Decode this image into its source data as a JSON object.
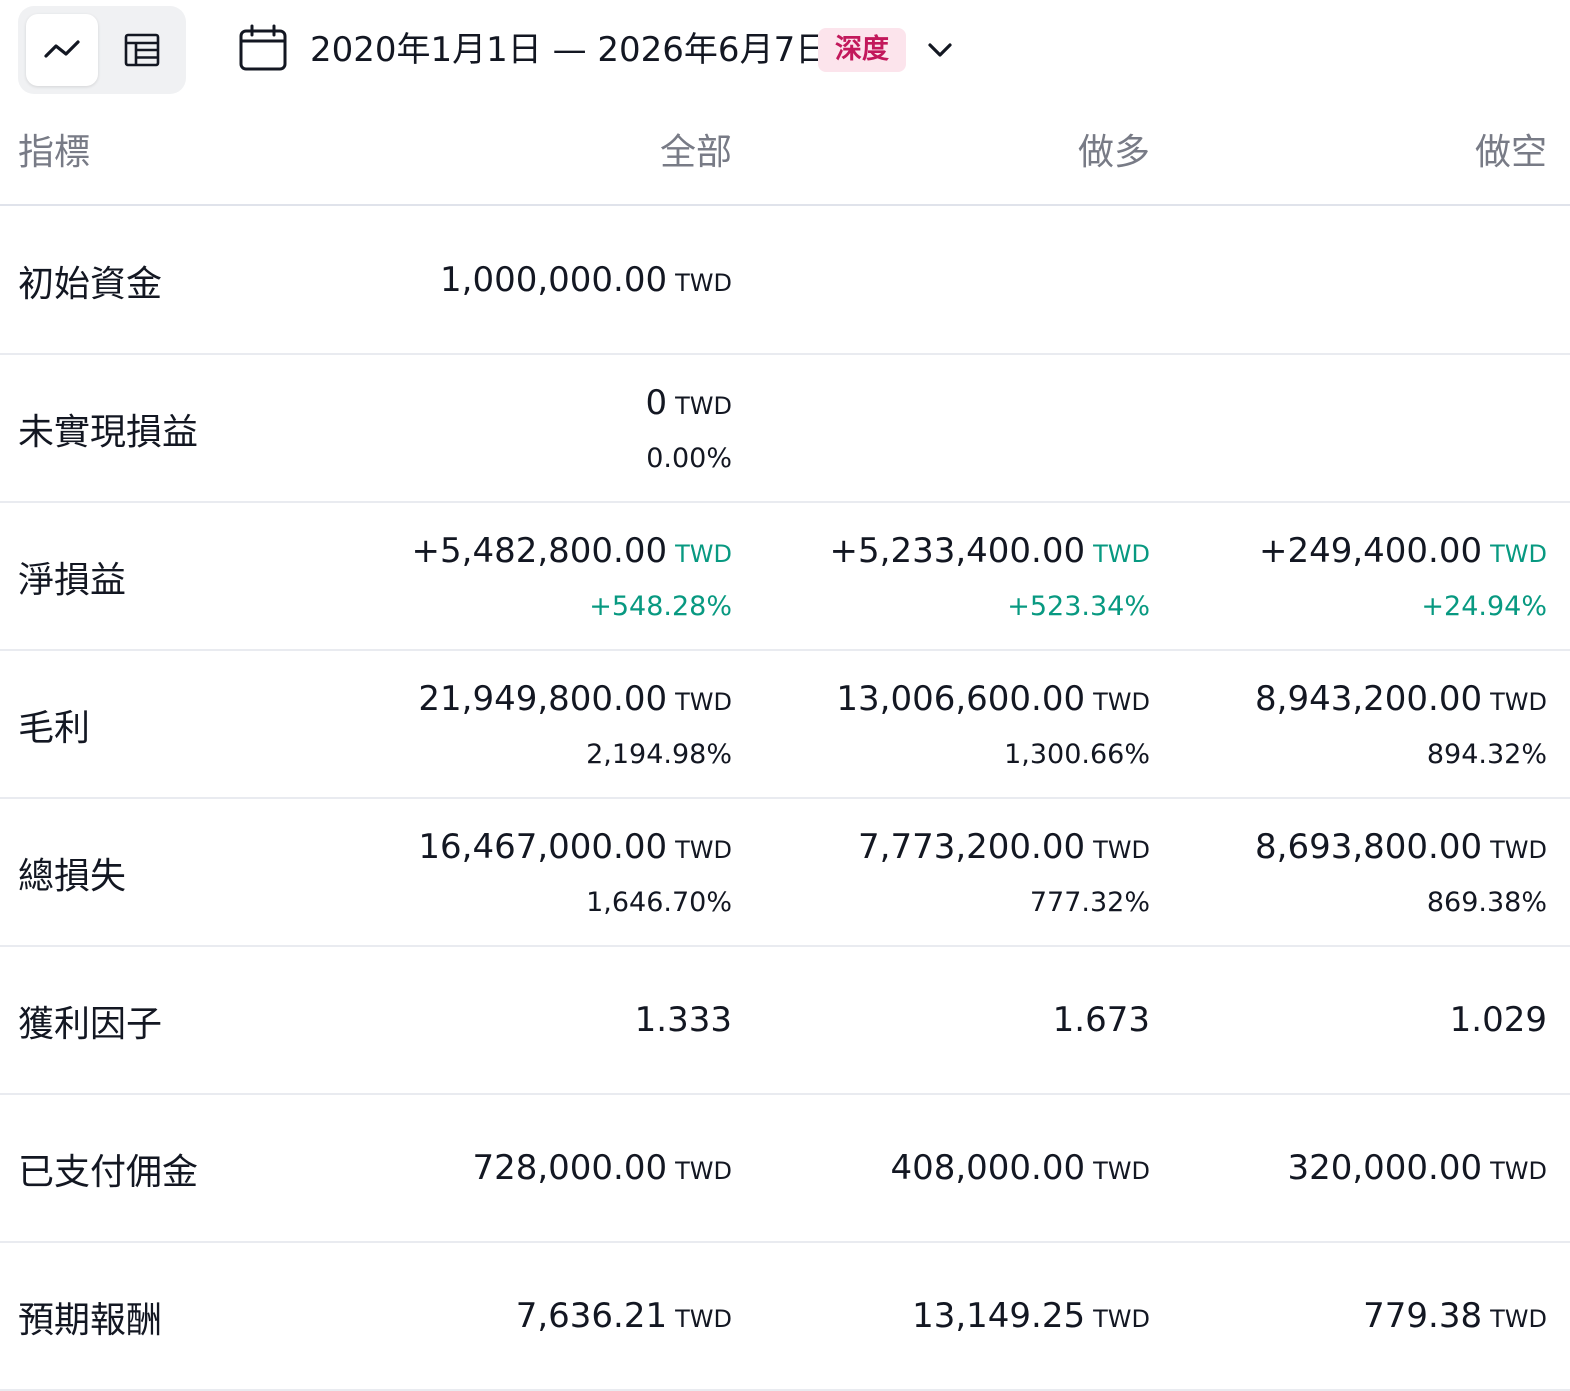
{
  "toolbar": {
    "date_range": "2020年1月1日 — 2026年6月7日",
    "badge": "深度"
  },
  "colors": {
    "positive": "#089981",
    "badge_bg": "#fce4ec",
    "badge_fg": "#c2185b",
    "muted": "#787b86"
  },
  "table": {
    "headers": [
      "指標",
      "全部",
      "做多",
      "做空"
    ],
    "unit": "TWD",
    "rows": [
      {
        "label": "初始資金",
        "cells": [
          {
            "value": "1,000,000.00",
            "unit": "TWD",
            "sub": ""
          },
          {
            "value": "",
            "unit": "",
            "sub": ""
          },
          {
            "value": "",
            "unit": "",
            "sub": ""
          }
        ]
      },
      {
        "label": "未實現損益",
        "cells": [
          {
            "value": "0",
            "unit": "TWD",
            "sub": "0.00%"
          },
          {
            "value": "",
            "unit": "",
            "sub": ""
          },
          {
            "value": "",
            "unit": "",
            "sub": ""
          }
        ]
      },
      {
        "label": "淨損益",
        "cells": [
          {
            "value": "+5,482,800.00",
            "unit": "TWD",
            "sub": "+548.28%",
            "positive": true
          },
          {
            "value": "+5,233,400.00",
            "unit": "TWD",
            "sub": "+523.34%",
            "positive": true
          },
          {
            "value": "+249,400.00",
            "unit": "TWD",
            "sub": "+24.94%",
            "positive": true
          }
        ]
      },
      {
        "label": "毛利",
        "cells": [
          {
            "value": "21,949,800.00",
            "unit": "TWD",
            "sub": "2,194.98%"
          },
          {
            "value": "13,006,600.00",
            "unit": "TWD",
            "sub": "1,300.66%"
          },
          {
            "value": "8,943,200.00",
            "unit": "TWD",
            "sub": "894.32%"
          }
        ]
      },
      {
        "label": "總損失",
        "cells": [
          {
            "value": "16,467,000.00",
            "unit": "TWD",
            "sub": "1,646.70%"
          },
          {
            "value": "7,773,200.00",
            "unit": "TWD",
            "sub": "777.32%"
          },
          {
            "value": "8,693,800.00",
            "unit": "TWD",
            "sub": "869.38%"
          }
        ]
      },
      {
        "label": "獲利因子",
        "cells": [
          {
            "value": "1.333",
            "unit": "",
            "sub": ""
          },
          {
            "value": "1.673",
            "unit": "",
            "sub": ""
          },
          {
            "value": "1.029",
            "unit": "",
            "sub": ""
          }
        ]
      },
      {
        "label": "已支付佣金",
        "cells": [
          {
            "value": "728,000.00",
            "unit": "TWD",
            "sub": ""
          },
          {
            "value": "408,000.00",
            "unit": "TWD",
            "sub": ""
          },
          {
            "value": "320,000.00",
            "unit": "TWD",
            "sub": ""
          }
        ]
      },
      {
        "label": "預期報酬",
        "cells": [
          {
            "value": "7,636.21",
            "unit": "TWD",
            "sub": ""
          },
          {
            "value": "13,149.25",
            "unit": "TWD",
            "sub": ""
          },
          {
            "value": "779.38",
            "unit": "TWD",
            "sub": ""
          }
        ]
      }
    ]
  }
}
